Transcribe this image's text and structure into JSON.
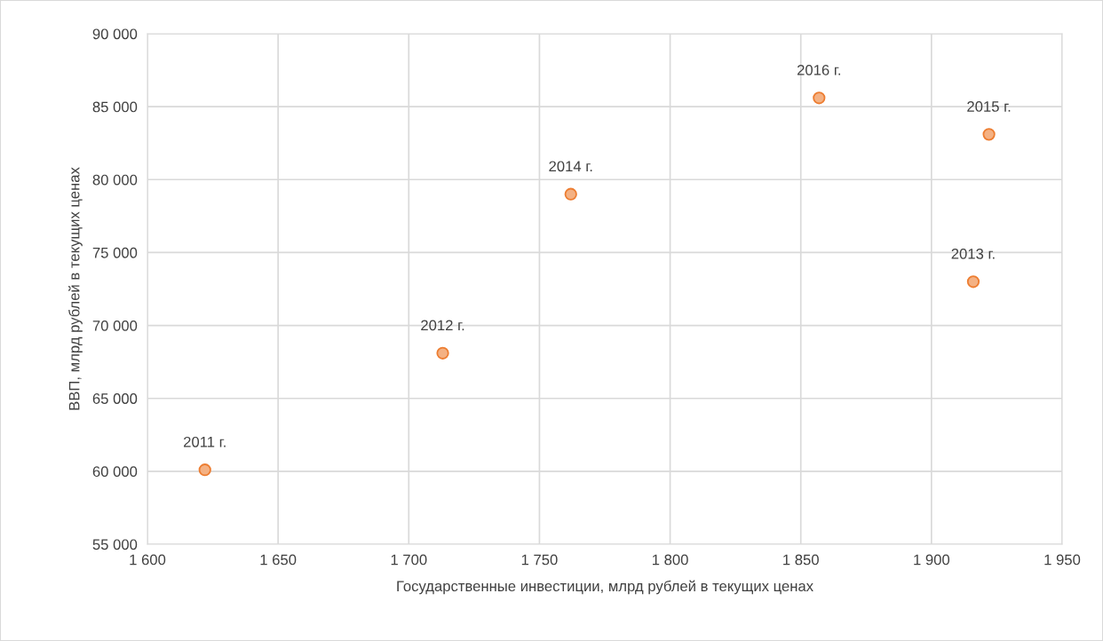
{
  "chart_data": {
    "type": "scatter",
    "xlabel": "Государственные инвестиции, млрд рублей в текущих ценах",
    "ylabel": "ВВП, млрд рублей в текущих ценах",
    "x": [
      1622,
      1713,
      1916,
      1762,
      1922,
      1857
    ],
    "series": [
      {
        "color": "#f4b183",
        "values": [
          60100,
          68100,
          73000,
          79000,
          83100,
          85600
        ]
      }
    ],
    "annotations": [
      {
        "text": "2011 г.",
        "x": 1622,
        "y": 60100
      },
      {
        "text": "2012 г.",
        "x": 1713,
        "y": 68100
      },
      {
        "text": "2013 г.",
        "x": 1916,
        "y": 73000
      },
      {
        "text": "2014 г.",
        "x": 1762,
        "y": 79000
      },
      {
        "text": "2015 г.",
        "x": 1922,
        "y": 83100
      },
      {
        "text": "2016 г.",
        "x": 1857,
        "y": 85600
      }
    ],
    "xlim": [
      1600,
      1950
    ],
    "xticks": [
      {
        "value": 1600,
        "label": "1 600"
      },
      {
        "value": 1650,
        "label": "1 650"
      },
      {
        "value": 1700,
        "label": "1 700"
      },
      {
        "value": 1750,
        "label": "1 750"
      },
      {
        "value": 1800,
        "label": "1 800"
      },
      {
        "value": 1850,
        "label": "1 850"
      },
      {
        "value": 1900,
        "label": "1 900"
      },
      {
        "value": 1950,
        "label": "1 950"
      }
    ],
    "ylim": [
      55000,
      90000
    ],
    "yticks": [
      {
        "value": 55000,
        "label": "55 000"
      },
      {
        "value": 60000,
        "label": "60 000"
      },
      {
        "value": 65000,
        "label": "65 000"
      },
      {
        "value": 70000,
        "label": "70 000"
      },
      {
        "value": 75000,
        "label": "75 000"
      },
      {
        "value": 80000,
        "label": "80 000"
      },
      {
        "value": 85000,
        "label": "85 000"
      },
      {
        "value": 90000,
        "label": "90 000"
      }
    ],
    "grid": true,
    "marker": "circle",
    "legend": false
  }
}
